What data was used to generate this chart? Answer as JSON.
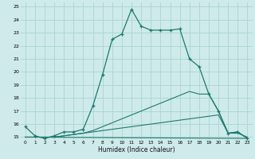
{
  "xlabel": "Humidex (Indice chaleur)",
  "background_color": "#ceeaea",
  "grid_color": "#aad4d4",
  "line_color": "#1e7a6e",
  "xlim": [
    -0.5,
    23.5
  ],
  "ylim": [
    14.8,
    25.3
  ],
  "xticks": [
    0,
    1,
    2,
    3,
    4,
    5,
    6,
    7,
    8,
    9,
    10,
    11,
    12,
    13,
    14,
    15,
    16,
    17,
    18,
    19,
    20,
    21,
    22,
    23
  ],
  "yticks": [
    15,
    16,
    17,
    18,
    19,
    20,
    21,
    22,
    23,
    24,
    25
  ],
  "series1_x": [
    0,
    1,
    2,
    3,
    4,
    5,
    6,
    7,
    8,
    9,
    10,
    11,
    12,
    13,
    14,
    15,
    16,
    17,
    18,
    19,
    20,
    21,
    22,
    23
  ],
  "series1_y": [
    15.8,
    15.1,
    14.9,
    15.1,
    15.4,
    15.4,
    15.6,
    17.4,
    19.8,
    22.5,
    22.9,
    24.8,
    23.5,
    23.2,
    23.2,
    23.2,
    23.3,
    21.0,
    20.4,
    18.3,
    17.0,
    15.3,
    15.4,
    14.9
  ],
  "series2_x": [
    0,
    1,
    2,
    3,
    4,
    5,
    6,
    7,
    8,
    9,
    10,
    11,
    12,
    13,
    14,
    15,
    16,
    17,
    18,
    19,
    20,
    21,
    22,
    23
  ],
  "series2_y": [
    15.0,
    15.0,
    15.0,
    15.0,
    15.1,
    15.2,
    15.3,
    15.4,
    15.5,
    15.6,
    15.7,
    15.8,
    15.9,
    16.0,
    16.1,
    16.2,
    16.3,
    16.4,
    16.5,
    16.6,
    16.7,
    15.3,
    15.3,
    15.0
  ],
  "series3_x": [
    0,
    1,
    2,
    3,
    4,
    5,
    6,
    7,
    8,
    9,
    10,
    11,
    12,
    13,
    14,
    15,
    16,
    17,
    18,
    19,
    20,
    21,
    22,
    23
  ],
  "series3_y": [
    15.0,
    15.0,
    15.0,
    15.0,
    15.1,
    15.2,
    15.3,
    15.5,
    15.8,
    16.1,
    16.4,
    16.7,
    17.0,
    17.3,
    17.6,
    17.9,
    18.2,
    18.5,
    18.3,
    18.3,
    17.0,
    15.3,
    15.4,
    14.9
  ],
  "series4_x": [
    0,
    23
  ],
  "series4_y": [
    15.0,
    14.9
  ]
}
